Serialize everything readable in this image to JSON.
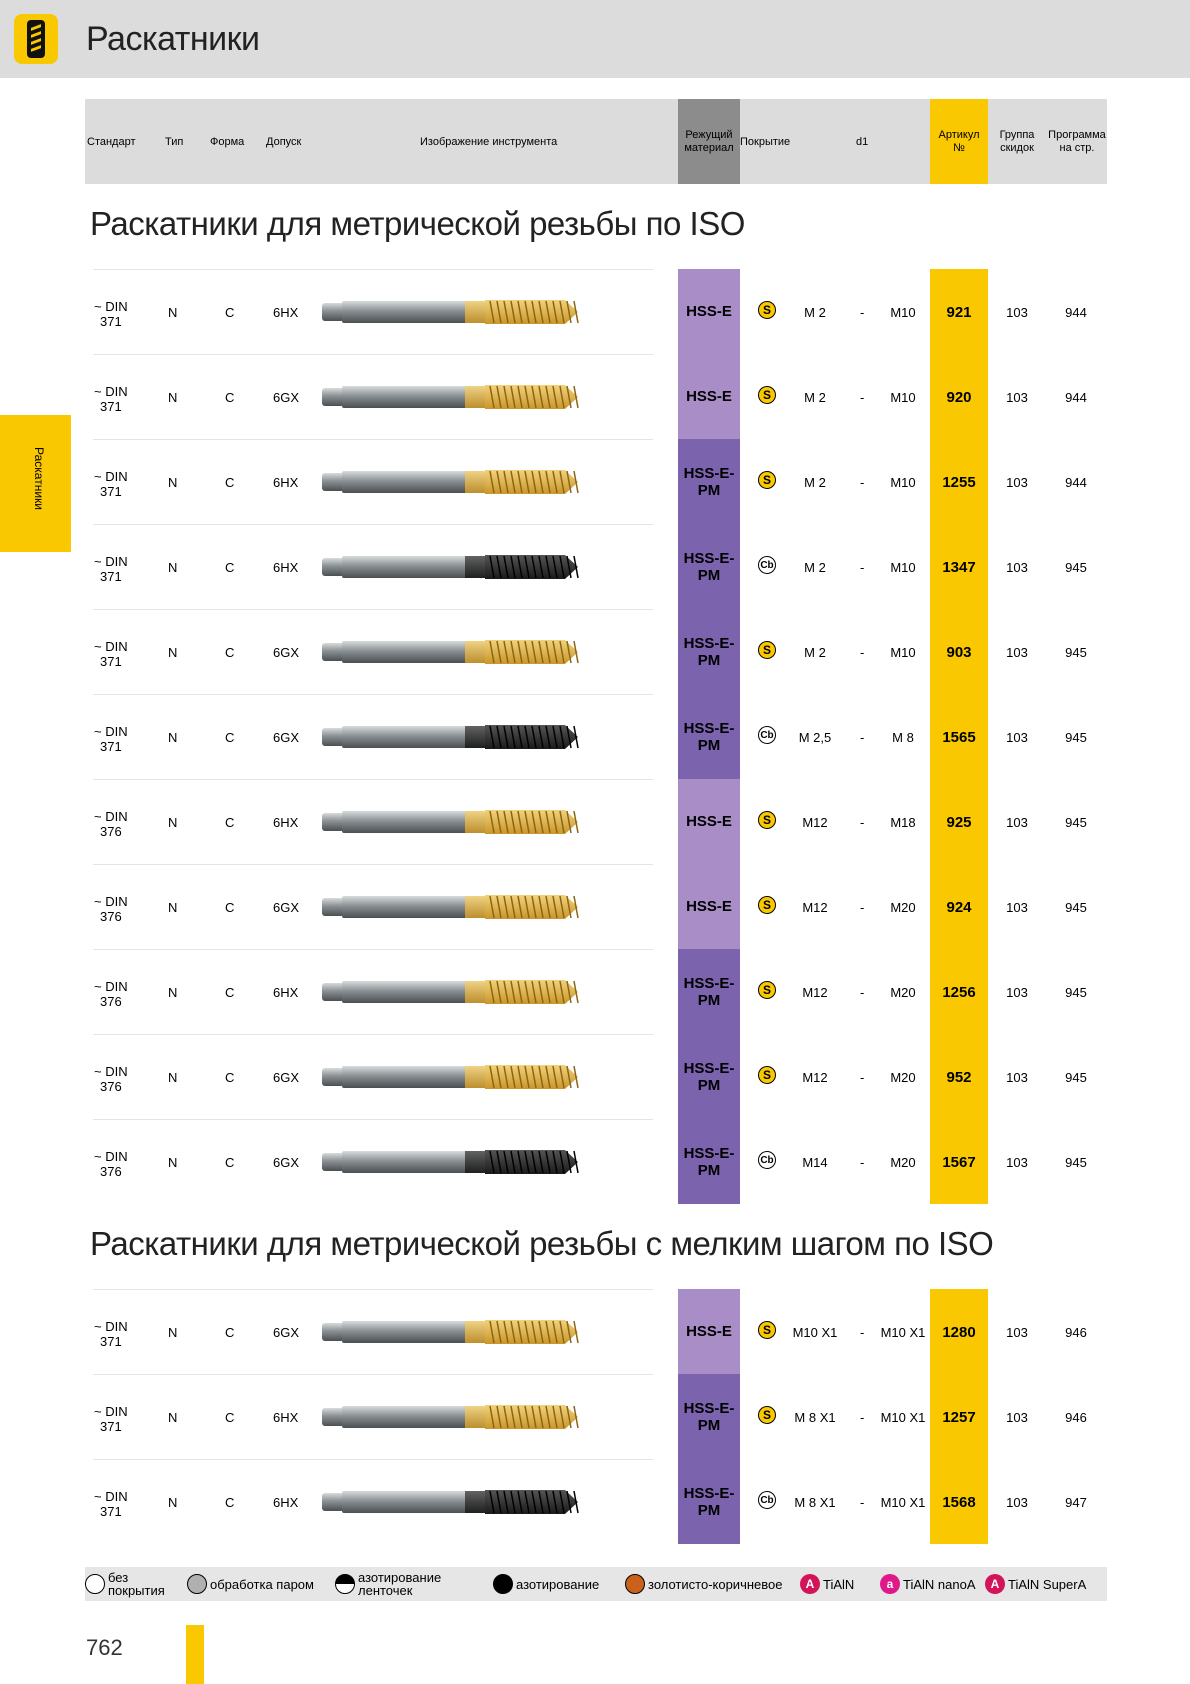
{
  "page": {
    "title": "Раскатники",
    "side_tab": "Раскатники",
    "page_number": "762"
  },
  "header": {
    "standard": "Стандарт",
    "type": "Тип",
    "form": "Форма",
    "tolerance": "Допуск",
    "tool_image": "Изображение инструмента",
    "material_line1": "Режущий",
    "material_line2": "материал",
    "coating": "Покрытие",
    "d1": "d1",
    "article_line1": "Артикул",
    "article_line2": "№",
    "discount_line1": "Группа",
    "discount_line2": "скидок",
    "program_line1": "Программа",
    "program_line2": "на стр."
  },
  "sections": [
    {
      "title": "Раскатники для метрической резьбы по ISO",
      "rows": [
        {
          "std1": "~ DIN",
          "std2": "371",
          "type": "N",
          "form": "C",
          "tol": "6HX",
          "mat1": "HSS-E",
          "mat2": "",
          "coat": "S",
          "d1_from": "M 2",
          "sep": "-",
          "d1_to": "M10",
          "article": "921",
          "group": "103",
          "program": "944",
          "tip": "gold"
        },
        {
          "std1": "~ DIN",
          "std2": "371",
          "type": "N",
          "form": "C",
          "tol": "6GX",
          "mat1": "HSS-E",
          "mat2": "",
          "coat": "S",
          "d1_from": "M 2",
          "sep": "-",
          "d1_to": "M10",
          "article": "920",
          "group": "103",
          "program": "944",
          "tip": "gold"
        },
        {
          "std1": "~ DIN",
          "std2": "371",
          "type": "N",
          "form": "C",
          "tol": "6HX",
          "mat1": "HSS-E-",
          "mat2": "PM",
          "coat": "S",
          "d1_from": "M 2",
          "sep": "-",
          "d1_to": "M10",
          "article": "1255",
          "group": "103",
          "program": "944",
          "tip": "gold"
        },
        {
          "std1": "~ DIN",
          "std2": "371",
          "type": "N",
          "form": "C",
          "tol": "6HX",
          "mat1": "HSS-E-",
          "mat2": "PM",
          "coat": "Cb",
          "d1_from": "M 2",
          "sep": "-",
          "d1_to": "M10",
          "article": "1347",
          "group": "103",
          "program": "945",
          "tip": "black"
        },
        {
          "std1": "~ DIN",
          "std2": "371",
          "type": "N",
          "form": "C",
          "tol": "6GX",
          "mat1": "HSS-E-",
          "mat2": "PM",
          "coat": "S",
          "d1_from": "M 2",
          "sep": "-",
          "d1_to": "M10",
          "article": "903",
          "group": "103",
          "program": "945",
          "tip": "gold"
        },
        {
          "std1": "~ DIN",
          "std2": "371",
          "type": "N",
          "form": "C",
          "tol": "6GX",
          "mat1": "HSS-E-",
          "mat2": "PM",
          "coat": "Cb",
          "d1_from": "M 2,5",
          "sep": "-",
          "d1_to": "M 8",
          "article": "1565",
          "group": "103",
          "program": "945",
          "tip": "black"
        },
        {
          "std1": "~ DIN",
          "std2": "376",
          "type": "N",
          "form": "C",
          "tol": "6HX",
          "mat1": "HSS-E",
          "mat2": "",
          "coat": "S",
          "d1_from": "M12",
          "sep": "-",
          "d1_to": "M18",
          "article": "925",
          "group": "103",
          "program": "945",
          "tip": "gold"
        },
        {
          "std1": "~ DIN",
          "std2": "376",
          "type": "N",
          "form": "C",
          "tol": "6GX",
          "mat1": "HSS-E",
          "mat2": "",
          "coat": "S",
          "d1_from": "M12",
          "sep": "-",
          "d1_to": "M20",
          "article": "924",
          "group": "103",
          "program": "945",
          "tip": "gold"
        },
        {
          "std1": "~ DIN",
          "std2": "376",
          "type": "N",
          "form": "C",
          "tol": "6HX",
          "mat1": "HSS-E-",
          "mat2": "PM",
          "coat": "S",
          "d1_from": "M12",
          "sep": "-",
          "d1_to": "M20",
          "article": "1256",
          "group": "103",
          "program": "945",
          "tip": "gold"
        },
        {
          "std1": "~ DIN",
          "std2": "376",
          "type": "N",
          "form": "C",
          "tol": "6GX",
          "mat1": "HSS-E-",
          "mat2": "PM",
          "coat": "S",
          "d1_from": "M12",
          "sep": "-",
          "d1_to": "M20",
          "article": "952",
          "group": "103",
          "program": "945",
          "tip": "gold"
        },
        {
          "std1": "~ DIN",
          "std2": "376",
          "type": "N",
          "form": "C",
          "tol": "6GX",
          "mat1": "HSS-E-",
          "mat2": "PM",
          "coat": "Cb",
          "d1_from": "M14",
          "sep": "-",
          "d1_to": "M20",
          "article": "1567",
          "group": "103",
          "program": "945",
          "tip": "black"
        }
      ]
    },
    {
      "title": "Раскатники для метрической резьбы с мелким шагом по ISO",
      "rows": [
        {
          "std1": "~ DIN",
          "std2": "371",
          "type": "N",
          "form": "C",
          "tol": "6GX",
          "mat1": "HSS-E",
          "mat2": "",
          "coat": "S",
          "d1_from": "M10 X1",
          "sep": "-",
          "d1_to": "M10 X1",
          "article": "1280",
          "group": "103",
          "program": "946",
          "tip": "gold"
        },
        {
          "std1": "~ DIN",
          "std2": "371",
          "type": "N",
          "form": "C",
          "tol": "6HX",
          "mat1": "HSS-E-",
          "mat2": "PM",
          "coat": "S",
          "d1_from": "M 8 X1",
          "sep": "-",
          "d1_to": "M10 X1",
          "article": "1257",
          "group": "103",
          "program": "946",
          "tip": "gold"
        },
        {
          "std1": "~ DIN",
          "std2": "371",
          "type": "N",
          "form": "C",
          "tol": "6HX",
          "mat1": "HSS-E-",
          "mat2": "PM",
          "coat": "Cb",
          "d1_from": "M 8 X1",
          "sep": "-",
          "d1_to": "M10 X1",
          "article": "1568",
          "group": "103",
          "program": "947",
          "tip": "black"
        }
      ]
    }
  ],
  "legend": [
    {
      "line1": "без",
      "line2": "покрытия",
      "color": "#ffffff",
      "kind": "circle"
    },
    {
      "line1": "обработка паром",
      "line2": "",
      "color": "#b0b0b0",
      "kind": "circle"
    },
    {
      "line1": "азотирование",
      "line2": "ленточек",
      "color": "half",
      "kind": "circle"
    },
    {
      "line1": "азотирование",
      "line2": "",
      "color": "#000000",
      "kind": "circle"
    },
    {
      "line1": "золотисто-коричневое",
      "line2": "",
      "color": "#c8621a",
      "kind": "circle"
    },
    {
      "line1": "TiAlN",
      "line2": "",
      "color": "#d4145a",
      "kind": "letter",
      "letter": "A"
    },
    {
      "line1": "TiAlN nanoA",
      "line2": "",
      "color": "#e0198a",
      "kind": "letter",
      "letter": "a"
    },
    {
      "line1": "TiAlN SuperA",
      "line2": "",
      "color": "#d4145a",
      "kind": "letter",
      "letter": "A"
    }
  ],
  "colors": {
    "accent_yellow": "#f9c800",
    "hsse": "#a98dc7",
    "hsse_pm": "#7b63ae",
    "header_gray": "#dcdcdc"
  }
}
